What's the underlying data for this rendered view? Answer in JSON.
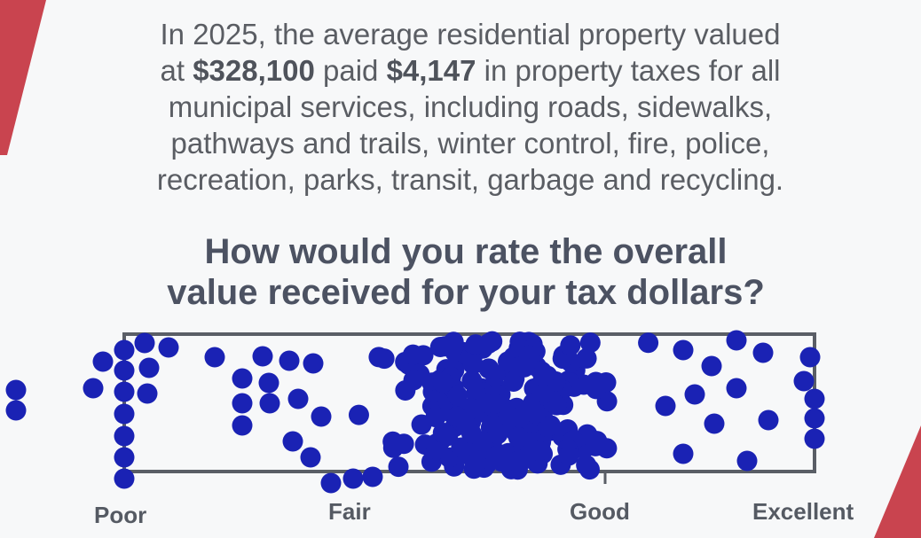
{
  "statement": {
    "lines": [
      [
        "In 2025, the average residential property valued"
      ],
      [
        "at",
        "$328,100",
        "paid",
        "$4,147",
        "in property taxes for all"
      ],
      [
        "municipal services, including roads, sidewalks,"
      ],
      [
        "pathways and trails, winter control, fire, police,"
      ],
      [
        "recreation, parks, transit, garbage and recycling."
      ]
    ]
  },
  "question": {
    "lines": [
      "How would you rate the overall",
      "value received for your tax dollars?"
    ]
  },
  "scale": {
    "labels": [
      "Poor",
      "Fair",
      "Good",
      "Excellent"
    ]
  }
}
